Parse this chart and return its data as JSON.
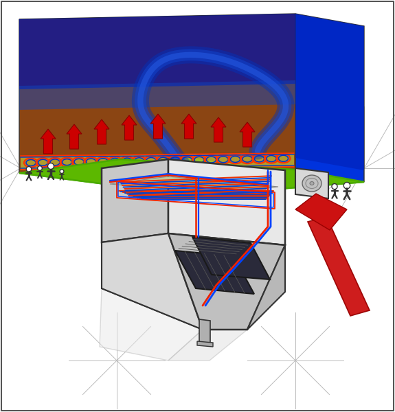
{
  "bg_color": "#ffffff",
  "ground_green": "#5cb800",
  "ground_brown_dark": "#7a3c10",
  "ground_brown_light": "#8B4513",
  "blue_deep": "#0011aa",
  "blue_mid": "#0033dd",
  "house_wall_light": "#e8e8e8",
  "house_wall_mid": "#c8c8c8",
  "house_wall_dark": "#b0b0b0",
  "house_roof_light": "#d5d5d5",
  "house_roof_dark": "#909090",
  "solar_dark": "#2a2a3a",
  "solar_mid": "#404050",
  "red_pipe": "#ee2200",
  "blue_pipe": "#0044ff",
  "red_arrow": "#cc0000",
  "coil_red": "#ff3300",
  "coil_blue": "#0033cc",
  "floor_heat_red": "#ee3300",
  "floor_heat_blue": "#0044cc",
  "sun_arrow_red": "#cc1111",
  "hp_gray": "#d8d8d8",
  "outline_dark": "#333333",
  "construction_line": "#bbbbbb",
  "green_dark": "#4aaa00",
  "green_light": "#6dcc00"
}
